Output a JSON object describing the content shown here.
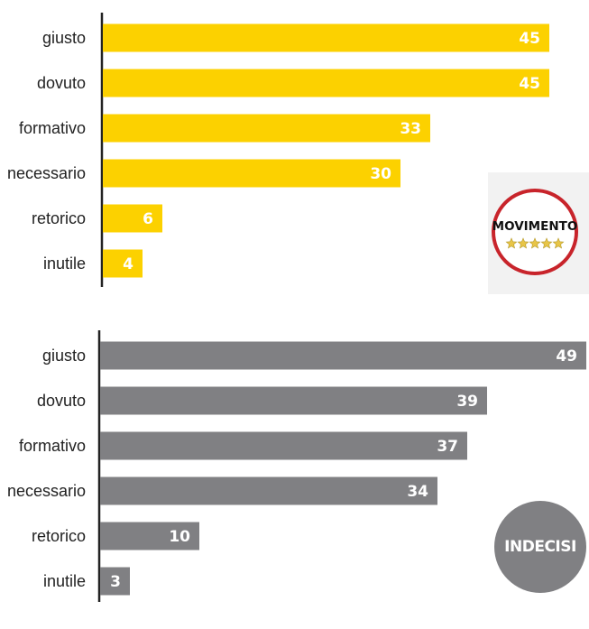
{
  "chart_data": [
    {
      "type": "bar",
      "orientation": "horizontal",
      "categories": [
        "giusto",
        "dovuto",
        "formativo",
        "necessario",
        "retorico",
        "inutile"
      ],
      "values": [
        45,
        45,
        33,
        30,
        6,
        4
      ],
      "color": "#fcd100",
      "logo_text": "MOVIMENTO",
      "grid": false
    },
    {
      "type": "bar",
      "orientation": "horizontal",
      "categories": [
        "giusto",
        "dovuto",
        "formativo",
        "necessario",
        "retorico",
        "inutile"
      ],
      "values": [
        49,
        39,
        37,
        34,
        10,
        3
      ],
      "color": "#808083",
      "badge_text": "INDECISI",
      "grid": false
    }
  ],
  "colors": {
    "yellow": "#fcd100",
    "gray": "#808083",
    "logo_red": "#c8242b",
    "logo_star": "#e8c547"
  },
  "icons": {
    "logo": "movimento-5-stelle-logo",
    "badge": "indecisi-circle-badge"
  }
}
